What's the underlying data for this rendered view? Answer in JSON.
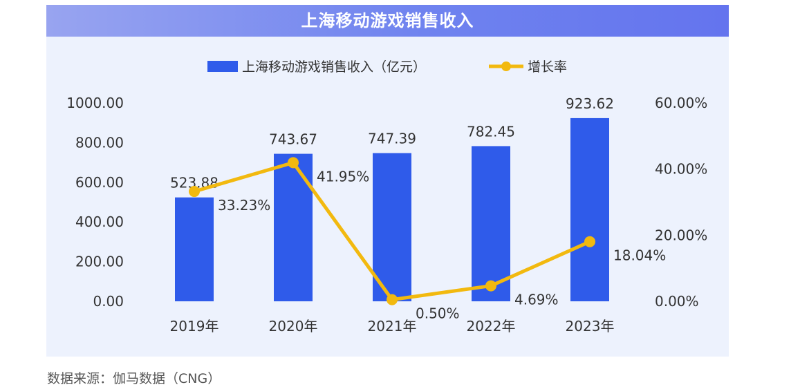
{
  "title": "上海移动游戏销售收入",
  "source": "数据来源：伽马数据（CNG）",
  "colors": {
    "bar": "#2f5bea",
    "line": "#f2b90f",
    "title_bg": "#7b8cf0",
    "panel_bg": "#edf2fd",
    "text": "#333333"
  },
  "chart_data": {
    "type": "bar",
    "title": "上海移动游戏销售收入",
    "categories": [
      "2019年",
      "2020年",
      "2021年",
      "2022年",
      "2023年"
    ],
    "series": [
      {
        "name": "上海移动游戏销售收入（亿元）",
        "type": "bar",
        "axis": "left",
        "values": [
          523.88,
          743.67,
          747.39,
          782.45,
          923.62
        ],
        "labels": [
          "523.88",
          "743.67",
          "747.39",
          "782.45",
          "923.62"
        ]
      },
      {
        "name": "增长率",
        "type": "line",
        "axis": "right",
        "values": [
          33.23,
          41.95,
          0.5,
          4.69,
          18.04
        ],
        "labels": [
          "33.23%",
          "41.95%",
          "0.50%",
          "4.69%",
          "18.04%"
        ]
      }
    ],
    "y_left": {
      "ylim": [
        0,
        1000
      ],
      "ticks": [
        0,
        200,
        400,
        600,
        800,
        1000
      ],
      "tick_labels": [
        "0.00",
        "200.00",
        "400.00",
        "600.00",
        "800.00",
        "1000.00"
      ]
    },
    "y_right": {
      "ylim": [
        0,
        60
      ],
      "ticks": [
        0,
        20,
        40,
        60
      ],
      "tick_labels": [
        "0.00%",
        "20.00%",
        "40.00%",
        "60.00%"
      ]
    },
    "grid": false,
    "legend_position": "top-center"
  }
}
